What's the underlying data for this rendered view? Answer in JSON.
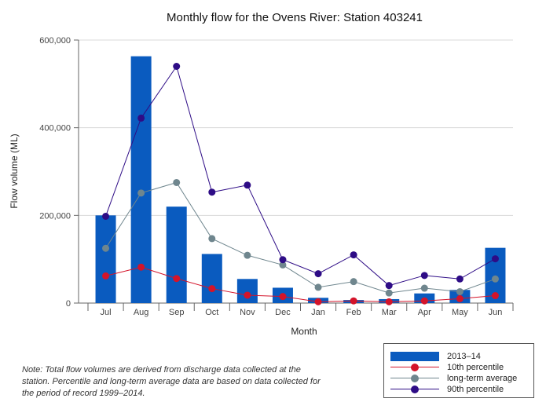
{
  "chart_data": {
    "type": "bar",
    "title": "Monthly flow for the Ovens River: Station 403241",
    "xlabel": "Month",
    "ylabel": "Flow volume (ML)",
    "ylim": [
      0,
      600000
    ],
    "yticks": [
      0,
      200000,
      400000,
      600000
    ],
    "ytick_labels": [
      "0",
      "200,000",
      "400,000",
      "600,000"
    ],
    "categories": [
      "Jul",
      "Aug",
      "Sep",
      "Oct",
      "Nov",
      "Dec",
      "Jan",
      "Feb",
      "Mar",
      "Apr",
      "May",
      "Jun"
    ],
    "series": [
      {
        "name": "2013–14",
        "kind": "bar",
        "color": "#0a5bbf",
        "values": [
          200000,
          563000,
          220000,
          112000,
          55000,
          35000,
          12000,
          7000,
          9000,
          22000,
          30000,
          126000
        ]
      },
      {
        "name": "10th percentile",
        "kind": "line",
        "color": "#d4142a",
        "values": [
          62000,
          82000,
          56000,
          33000,
          18000,
          15000,
          3000,
          5000,
          3000,
          5000,
          10000,
          17000
        ]
      },
      {
        "name": "long-term average",
        "kind": "line",
        "color": "#6f868e",
        "values": [
          125000,
          251000,
          275000,
          147000,
          109000,
          87000,
          36000,
          49000,
          23000,
          34000,
          26000,
          55000
        ]
      },
      {
        "name": "90th percentile",
        "kind": "line",
        "color": "#2e0c86",
        "values": [
          198000,
          422000,
          540000,
          253000,
          269000,
          99000,
          67000,
          110000,
          40000,
          63000,
          55000,
          101000
        ]
      }
    ],
    "legend_position": "bottom-right"
  },
  "note": "Note: Total flow volumes are derived from discharge data collected at the station. Percentile and long-term average data are based on data collected for the period of record 1999–2014."
}
